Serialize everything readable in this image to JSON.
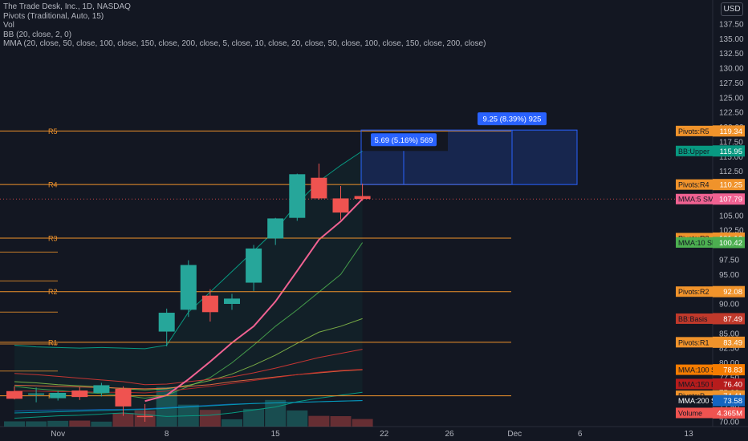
{
  "legend": {
    "line1": "The Trade Desk, Inc., 1D, NASDAQ",
    "line2": "Pivots (Traditional, Auto, 15)",
    "line3": "Vol",
    "line4": "BB (20, close, 2, 0)",
    "line5": "MMA (20, close, 50, close, 100, close, 150, close, 200, close, 5, close, 10, close, 20, close, 50, close, 100, close, 150, close, 200, close)"
  },
  "currency": "USD",
  "colors": {
    "up": "#26a69a",
    "down": "#ef5350",
    "pivot": "#f0932b",
    "pink": "#f06292",
    "bg": "#131722",
    "text": "#b2b5be",
    "measure": "#2962ff"
  },
  "chart_data": {
    "type": "candlestick",
    "ylim": [
      70,
      137.5
    ],
    "y_ticks": [
      "70.00",
      "72.50",
      "75.00",
      "77.50",
      "80.00",
      "82.50",
      "85.00",
      "87.50",
      "90.00",
      "92.50",
      "95.00",
      "97.50",
      "100.00",
      "102.50",
      "105.00",
      "107.50",
      "110.00",
      "112.50",
      "115.00",
      "117.50",
      "120.00",
      "122.50",
      "125.00",
      "127.50",
      "130.00",
      "132.50",
      "135.00",
      "137.50"
    ],
    "x_ticks": [
      {
        "label": "Nov",
        "bar": 2
      },
      {
        "label": "8",
        "bar": 7
      },
      {
        "label": "15",
        "bar": 12
      },
      {
        "label": "22",
        "bar": 17
      },
      {
        "label": "26",
        "bar": 20
      },
      {
        "label": "Dec",
        "bar": 23
      },
      {
        "label": "6",
        "bar": 26
      },
      {
        "label": "13",
        "bar": 31
      }
    ],
    "candles": [
      {
        "o": 75.2,
        "h": 76.0,
        "l": 73.8,
        "c": 73.9
      },
      {
        "o": 74.6,
        "h": 75.8,
        "l": 73.3,
        "c": 74.8
      },
      {
        "o": 74.0,
        "h": 75.2,
        "l": 73.6,
        "c": 74.9
      },
      {
        "o": 75.3,
        "h": 75.9,
        "l": 73.7,
        "c": 74.2
      },
      {
        "o": 74.9,
        "h": 76.6,
        "l": 74.3,
        "c": 76.2
      },
      {
        "o": 75.6,
        "h": 76.0,
        "l": 71.0,
        "c": 72.6
      },
      {
        "o": 71.0,
        "h": 73.0,
        "l": 70.0,
        "c": 70.9
      },
      {
        "o": 85.3,
        "h": 89.2,
        "l": 82.8,
        "c": 88.5
      },
      {
        "o": 89.0,
        "h": 97.4,
        "l": 87.8,
        "c": 96.6
      },
      {
        "o": 91.4,
        "h": 92.5,
        "l": 87.0,
        "c": 88.6
      },
      {
        "o": 90.0,
        "h": 91.7,
        "l": 89.0,
        "c": 90.9
      },
      {
        "o": 93.6,
        "h": 100.0,
        "l": 92.2,
        "c": 99.4
      },
      {
        "o": 101.1,
        "h": 104.6,
        "l": 100.0,
        "c": 104.5
      },
      {
        "o": 104.6,
        "h": 112.1,
        "l": 104.1,
        "c": 112.0
      },
      {
        "o": 111.4,
        "h": 113.8,
        "l": 107.7,
        "c": 107.9
      },
      {
        "o": 107.9,
        "h": 110.0,
        "l": 104.3,
        "c": 105.5
      },
      {
        "o": 108.3,
        "h": 110.4,
        "l": 107.5,
        "c": 107.8
      }
    ],
    "volume": [
      {
        "v": 1,
        "up": true
      },
      {
        "v": 1,
        "up": true
      },
      {
        "v": 1.1,
        "up": true
      },
      {
        "v": 1.15,
        "up": false
      },
      {
        "v": 0.95,
        "up": true
      },
      {
        "v": 2.6,
        "up": false
      },
      {
        "v": 3.1,
        "up": false
      },
      {
        "v": 7.6,
        "up": true
      },
      {
        "v": 4.2,
        "up": true
      },
      {
        "v": 3.2,
        "up": false
      },
      {
        "v": 1.4,
        "up": true
      },
      {
        "v": 3.4,
        "up": true
      },
      {
        "v": 5.1,
        "up": true
      },
      {
        "v": 3.1,
        "up": true
      },
      {
        "v": 2.05,
        "up": false
      },
      {
        "v": 2.0,
        "up": false
      },
      {
        "v": 1.45,
        "up": false
      }
    ],
    "pivots": [
      {
        "name": "R5",
        "value": 119.34
      },
      {
        "name": "R4",
        "value": 110.25
      },
      {
        "name": "R3",
        "value": 101.16
      },
      {
        "name": "R2",
        "value": 92.08
      },
      {
        "name": "R1",
        "value": 83.49
      },
      {
        "name": "P",
        "value": 74.41
      }
    ],
    "price_labels": [
      {
        "name": "Pivots:R5",
        "value": "119.34",
        "color": "#f0932b",
        "y": 119.34
      },
      {
        "name": "BB:Upper",
        "value": "115.95",
        "color": "#089981",
        "y": 115.95
      },
      {
        "name": "Pivots:R4",
        "value": "110.25",
        "color": "#f0932b",
        "y": 110.25
      },
      {
        "name": "MMA:5 SMA",
        "value": "107.79",
        "color": "#f06292",
        "y": 107.79
      },
      {
        "name": "Pivots:R3",
        "value": "101.16",
        "color": "#f0932b",
        "y": 101.16
      },
      {
        "name": "MMA:10 SMA",
        "value": "100.42",
        "color": "#4caf50",
        "y": 100.42
      },
      {
        "name": "Pivots:R2",
        "value": "92.08",
        "color": "#f0932b",
        "y": 92.08
      },
      {
        "name": "BB:Basis",
        "value": "87.49",
        "color": "#c0392b",
        "y": 87.49
      },
      {
        "name": "Pivots:R1",
        "value": "83.49",
        "color": "#f0932b",
        "y": 83.49
      },
      {
        "name": "MMA:100 SMA",
        "value": "78.83",
        "color": "#f57c00",
        "y": 78.83
      },
      {
        "name": "MMA:150 EMA",
        "value": "76.40",
        "color": "#b71c1c",
        "y": 76.4
      },
      {
        "name": "Pivots:P",
        "value": "74.41",
        "color": "#f0932b",
        "y": 74.41
      },
      {
        "name": "MMA:200 SMA",
        "value": "73.58",
        "color": "#ffffff",
        "y": 73.58
      },
      {
        "name": "Volume",
        "value": "4.365M",
        "color": "#ef5350",
        "y": 71.5
      }
    ],
    "measure_labels": [
      {
        "name": "5.69 (5.16%) 569",
        "value": 115.95
      },
      {
        "name": "9.25 (8.39%) 925",
        "value": 119.5
      }
    ],
    "measure_base": 110.25
  }
}
